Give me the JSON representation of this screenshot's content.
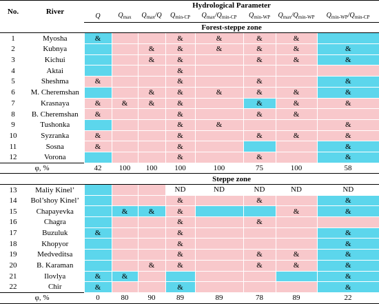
{
  "header": {
    "no": "No.",
    "river": "River",
    "group": "Hydrological Parameter",
    "columns": [
      [
        {
          "q": "Q"
        }
      ],
      [
        {
          "q": "Q",
          "sub": "max"
        }
      ],
      [
        {
          "q": "Q",
          "sub": "max"
        },
        {
          "q": "/Q"
        }
      ],
      [
        {
          "q": "Q",
          "sub": "min-CP"
        }
      ],
      [
        {
          "q": "Q",
          "sub": "max"
        },
        {
          "q": "/Q",
          "sub": "min-CP"
        }
      ],
      [
        {
          "q": "Q",
          "sub": "min-WP"
        }
      ],
      [
        {
          "q": "Q",
          "sub": "max"
        },
        {
          "q": "/Q",
          "sub": "min-WP"
        }
      ],
      [
        {
          "q": "Q",
          "sub": "min-WP"
        },
        {
          "q": "/Q",
          "sub": "min-CP"
        }
      ]
    ]
  },
  "sections": [
    {
      "zone": "Forest-steppe zone",
      "rows": [
        {
          "no": 1,
          "river": "Myosha",
          "cells": [
            "&",
            null,
            null,
            "&",
            "&",
            "&",
            "&",
            null
          ]
        },
        {
          "no": 2,
          "river": "Kubnya",
          "cells": [
            null,
            null,
            "&",
            "&",
            "&",
            "&",
            "&",
            "&"
          ]
        },
        {
          "no": 3,
          "river": "Kichui",
          "cells": [
            null,
            null,
            "&",
            "&",
            null,
            "&",
            "&",
            "&"
          ]
        },
        {
          "no": 4,
          "river": "Aktai",
          "cells": [
            null,
            null,
            null,
            "&",
            null,
            null,
            null,
            null
          ]
        },
        {
          "no": 5,
          "river": "Sheshma",
          "cells": [
            "&",
            null,
            null,
            "&",
            null,
            "&",
            null,
            "&"
          ]
        },
        {
          "no": 6,
          "river": "M. Cheremshan",
          "cells": [
            null,
            null,
            "&",
            "&",
            "&",
            "&",
            "&",
            "&"
          ]
        },
        {
          "no": 7,
          "river": "Krasnaya",
          "cells": [
            "&",
            "&",
            "&",
            "&",
            null,
            "&",
            "&",
            "&"
          ]
        },
        {
          "no": 8,
          "river": "B. Cheremshan",
          "cells": [
            "&",
            null,
            null,
            "&",
            null,
            "&",
            "&",
            null
          ]
        },
        {
          "no": 9,
          "river": "Tushonka",
          "cells": [
            null,
            null,
            null,
            "&",
            "&",
            null,
            null,
            "&"
          ]
        },
        {
          "no": 10,
          "river": "Syzranka",
          "cells": [
            "&",
            null,
            null,
            "&",
            null,
            "&",
            "&",
            "&"
          ]
        },
        {
          "no": 11,
          "river": "Sosna",
          "cells": [
            "&",
            null,
            null,
            "&",
            null,
            null,
            null,
            "&"
          ]
        },
        {
          "no": 12,
          "river": "Vorona",
          "cells": [
            null,
            null,
            null,
            "&",
            null,
            "&",
            null,
            "&"
          ]
        }
      ],
      "phi": {
        "label": "φ, %",
        "values": [
          42,
          100,
          100,
          100,
          100,
          75,
          100,
          58
        ]
      }
    },
    {
      "zone": "Steppe zone",
      "rows": [
        {
          "no": 13,
          "river": "Maliy Kinel’",
          "cells": [
            null,
            null,
            null,
            "ND",
            "ND",
            "ND",
            "ND",
            "ND"
          ]
        },
        {
          "no": 14,
          "river": "Bol’shoy Kinel’",
          "cells": [
            null,
            null,
            null,
            "&",
            null,
            "&",
            null,
            "&"
          ]
        },
        {
          "no": 15,
          "river": "Chapayevka",
          "cells": [
            null,
            "&",
            "&",
            "&",
            null,
            null,
            "&",
            "&"
          ]
        },
        {
          "no": 16,
          "river": "Chagra",
          "cells": [
            null,
            null,
            null,
            "&",
            null,
            "&",
            null,
            null
          ]
        },
        {
          "no": 17,
          "river": "Buzuluk",
          "cells": [
            "&",
            null,
            null,
            "&",
            null,
            null,
            null,
            "&"
          ]
        },
        {
          "no": 18,
          "river": "Khopyor",
          "cells": [
            null,
            null,
            null,
            "&",
            null,
            null,
            null,
            "&"
          ]
        },
        {
          "no": 19,
          "river": "Medveditsa",
          "cells": [
            null,
            null,
            null,
            "&",
            null,
            "&",
            "&",
            "&"
          ]
        },
        {
          "no": 20,
          "river": "B. Karaman",
          "cells": [
            null,
            null,
            "&",
            "&",
            null,
            "&",
            "&",
            "&"
          ]
        },
        {
          "no": 21,
          "river": "Ilovlya",
          "cells": [
            "&",
            "&",
            null,
            null,
            null,
            null,
            null,
            "&"
          ]
        },
        {
          "no": 22,
          "river": "Chir",
          "cells": [
            "&",
            null,
            null,
            "&",
            null,
            null,
            null,
            "&"
          ]
        }
      ],
      "phi": {
        "label": "φ, %",
        "values": [
          0,
          80,
          90,
          89,
          89,
          78,
          89,
          22
        ]
      }
    }
  ]
}
